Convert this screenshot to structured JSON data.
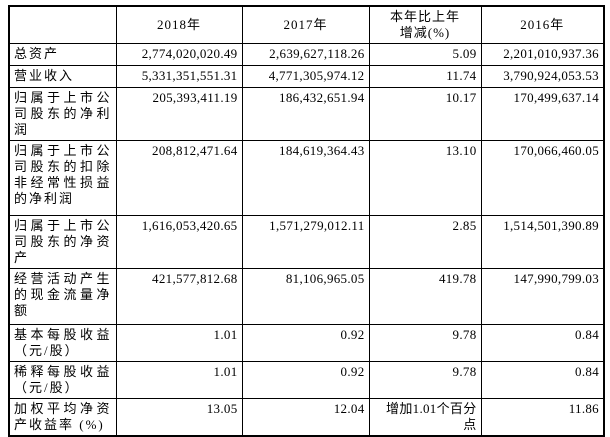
{
  "table": {
    "header": {
      "label_col": "",
      "y2018": "2018年",
      "y2017": "2017年",
      "change": "本年比上年\n增减(%)",
      "y2016": "2016年"
    },
    "rows": [
      [
        "总资产",
        "2,774,020,020.49",
        "2,639,627,118.26",
        "5.09",
        "2,201,010,937.36"
      ],
      [
        "营业收入",
        "5,331,351,551.31",
        "4,771,305,974.12",
        "11.74",
        "3,790,924,053.53"
      ],
      [
        "归属于上市公司股东的净利润",
        "205,393,411.19",
        "186,432,651.94",
        "10.17",
        "170,499,637.14"
      ],
      [
        "归属于上市公司股东的扣除非经常性损益的净利润",
        "208,812,471.64",
        "184,619,364.43",
        "13.10",
        "170,066,460.05"
      ],
      [
        "归属于上市公司股东的净资产",
        "1,616,053,420.65",
        "1,571,279,012.11",
        "2.85",
        "1,514,501,390.89"
      ],
      [
        "经营活动产生的现金流量净额",
        "421,577,812.68",
        "81,106,965.05",
        "419.78",
        "147,990,799.03"
      ],
      [
        "基本每股收益（元/股）",
        "1.01",
        "0.92",
        "9.78",
        "0.84"
      ],
      [
        "稀释每股收益（元/股）",
        "1.01",
        "0.92",
        "9.78",
        "0.84"
      ],
      [
        "加权平均净资产收益率 (%)",
        "13.05",
        "12.04",
        "增加1.01个百分点",
        "11.86"
      ]
    ]
  }
}
